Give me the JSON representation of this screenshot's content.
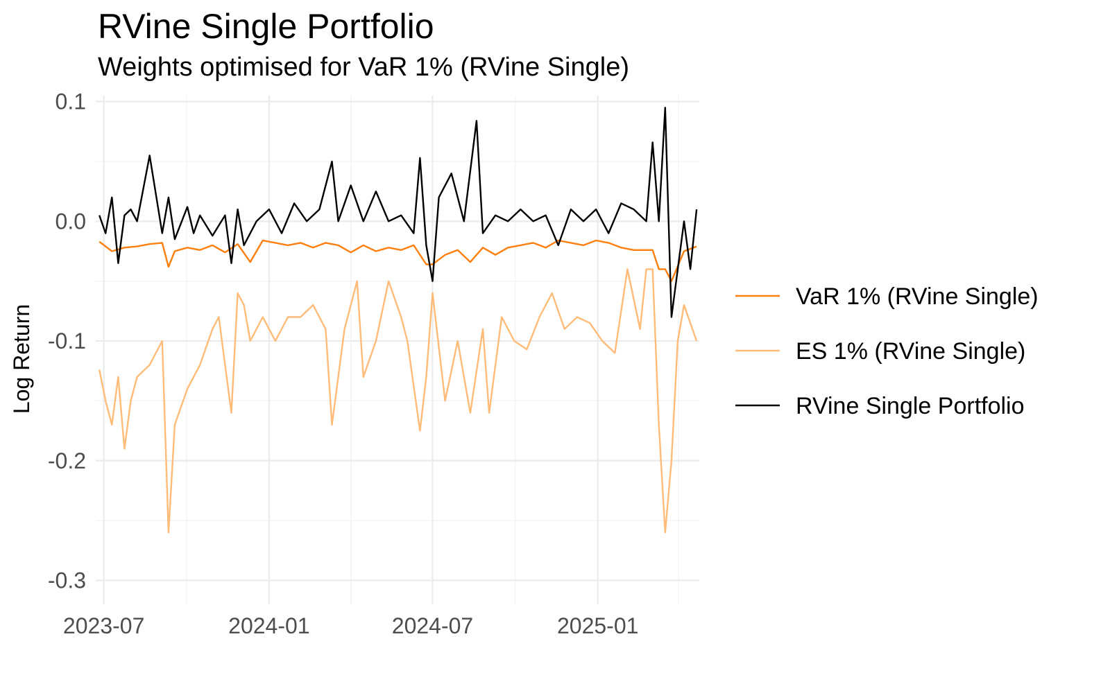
{
  "chart_data": {
    "type": "line",
    "title": "RVine Single Portfolio",
    "subtitle": "Weights optimised for VaR 1% (RVine Single)",
    "xlabel": "",
    "ylabel": "Log Return",
    "xlim": [
      "2023-06-22",
      "2025-04-24"
    ],
    "ylim": [
      -0.32,
      0.105
    ],
    "grid": true,
    "legend_position": "right",
    "x_ticks": [
      "2023-07",
      "2024-01",
      "2024-07",
      "2025-01"
    ],
    "y_ticks": [
      0.1,
      0.0,
      -0.1,
      -0.2,
      -0.3
    ],
    "y_tick_labels": [
      "0.1",
      "0.0",
      "-0.1",
      "-0.2",
      "-0.3"
    ],
    "series": [
      {
        "name": "VaR 1% (RVine Single)",
        "color": "#ff7f0e",
        "x": [
          "2023-06-26",
          "2023-07-10",
          "2023-07-24",
          "2023-08-07",
          "2023-08-21",
          "2023-09-04",
          "2023-09-11",
          "2023-09-18",
          "2023-10-02",
          "2023-10-16",
          "2023-10-30",
          "2023-11-13",
          "2023-11-27",
          "2023-12-11",
          "2023-12-25",
          "2024-01-08",
          "2024-01-22",
          "2024-02-05",
          "2024-02-19",
          "2024-03-04",
          "2024-03-18",
          "2024-04-01",
          "2024-04-15",
          "2024-04-29",
          "2024-05-13",
          "2024-05-27",
          "2024-06-10",
          "2024-06-24",
          "2024-07-01",
          "2024-07-15",
          "2024-07-29",
          "2024-08-12",
          "2024-08-26",
          "2024-09-09",
          "2024-09-23",
          "2024-10-07",
          "2024-10-21",
          "2024-11-04",
          "2024-11-18",
          "2024-12-02",
          "2024-12-16",
          "2024-12-30",
          "2025-01-13",
          "2025-01-27",
          "2025-02-10",
          "2025-02-24",
          "2025-03-03",
          "2025-03-10",
          "2025-03-17",
          "2025-03-24",
          "2025-04-07",
          "2025-04-21"
        ],
        "values": [
          -0.017,
          -0.025,
          -0.022,
          -0.021,
          -0.019,
          -0.018,
          -0.038,
          -0.025,
          -0.022,
          -0.024,
          -0.02,
          -0.026,
          -0.019,
          -0.034,
          -0.016,
          -0.018,
          -0.02,
          -0.018,
          -0.022,
          -0.018,
          -0.02,
          -0.026,
          -0.02,
          -0.025,
          -0.022,
          -0.024,
          -0.02,
          -0.036,
          -0.036,
          -0.028,
          -0.024,
          -0.034,
          -0.022,
          -0.028,
          -0.022,
          -0.02,
          -0.018,
          -0.022,
          -0.016,
          -0.018,
          -0.02,
          -0.016,
          -0.018,
          -0.022,
          -0.024,
          -0.024,
          -0.024,
          -0.04,
          -0.04,
          -0.05,
          -0.025,
          -0.021
        ]
      },
      {
        "name": "ES 1% (RVine Single)",
        "color": "#ffbb78",
        "x": [
          "2023-06-26",
          "2023-07-03",
          "2023-07-10",
          "2023-07-17",
          "2023-07-24",
          "2023-07-31",
          "2023-08-07",
          "2023-08-21",
          "2023-09-04",
          "2023-09-11",
          "2023-09-18",
          "2023-10-02",
          "2023-10-16",
          "2023-10-30",
          "2023-11-06",
          "2023-11-20",
          "2023-11-27",
          "2023-12-04",
          "2023-12-11",
          "2023-12-25",
          "2024-01-08",
          "2024-01-22",
          "2024-02-05",
          "2024-02-19",
          "2024-03-04",
          "2024-03-11",
          "2024-03-25",
          "2024-04-08",
          "2024-04-15",
          "2024-04-29",
          "2024-05-13",
          "2024-05-27",
          "2024-06-03",
          "2024-06-17",
          "2024-06-24",
          "2024-07-01",
          "2024-07-15",
          "2024-07-29",
          "2024-08-12",
          "2024-08-26",
          "2024-09-02",
          "2024-09-16",
          "2024-09-30",
          "2024-10-14",
          "2024-10-28",
          "2024-11-11",
          "2024-11-25",
          "2024-12-09",
          "2024-12-23",
          "2025-01-06",
          "2025-01-20",
          "2025-02-03",
          "2025-02-17",
          "2025-02-24",
          "2025-03-03",
          "2025-03-10",
          "2025-03-17",
          "2025-03-24",
          "2025-03-31",
          "2025-04-07",
          "2025-04-21"
        ],
        "values": [
          -0.124,
          -0.15,
          -0.17,
          -0.13,
          -0.19,
          -0.15,
          -0.13,
          -0.12,
          -0.1,
          -0.26,
          -0.17,
          -0.14,
          -0.12,
          -0.09,
          -0.08,
          -0.16,
          -0.06,
          -0.07,
          -0.1,
          -0.08,
          -0.1,
          -0.08,
          -0.08,
          -0.07,
          -0.09,
          -0.17,
          -0.09,
          -0.05,
          -0.13,
          -0.1,
          -0.05,
          -0.08,
          -0.1,
          -0.175,
          -0.13,
          -0.06,
          -0.15,
          -0.1,
          -0.16,
          -0.09,
          -0.16,
          -0.08,
          -0.1,
          -0.107,
          -0.08,
          -0.06,
          -0.09,
          -0.08,
          -0.085,
          -0.1,
          -0.11,
          -0.04,
          -0.09,
          -0.04,
          -0.04,
          -0.17,
          -0.26,
          -0.2,
          -0.1,
          -0.07,
          -0.1
        ]
      },
      {
        "name": "RVine Single Portfolio",
        "color": "#000000",
        "x": [
          "2023-06-26",
          "2023-07-03",
          "2023-07-10",
          "2023-07-17",
          "2023-07-24",
          "2023-07-31",
          "2023-08-07",
          "2023-08-21",
          "2023-09-04",
          "2023-09-11",
          "2023-09-18",
          "2023-10-02",
          "2023-10-09",
          "2023-10-16",
          "2023-10-30",
          "2023-11-13",
          "2023-11-20",
          "2023-11-27",
          "2023-12-04",
          "2023-12-18",
          "2024-01-01",
          "2024-01-15",
          "2024-01-29",
          "2024-02-12",
          "2024-02-26",
          "2024-03-11",
          "2024-03-18",
          "2024-04-01",
          "2024-04-15",
          "2024-04-29",
          "2024-05-13",
          "2024-05-27",
          "2024-06-10",
          "2024-06-17",
          "2024-06-24",
          "2024-07-01",
          "2024-07-08",
          "2024-07-22",
          "2024-08-05",
          "2024-08-19",
          "2024-08-26",
          "2024-09-09",
          "2024-09-23",
          "2024-10-07",
          "2024-10-21",
          "2024-11-04",
          "2024-11-18",
          "2024-12-02",
          "2024-12-16",
          "2024-12-30",
          "2025-01-13",
          "2025-01-27",
          "2025-02-10",
          "2025-02-24",
          "2025-03-03",
          "2025-03-10",
          "2025-03-17",
          "2025-03-24",
          "2025-04-07",
          "2025-04-14",
          "2025-04-21"
        ],
        "values": [
          0.005,
          -0.01,
          0.02,
          -0.035,
          0.005,
          0.01,
          0.0,
          0.055,
          -0.01,
          0.02,
          -0.015,
          0.012,
          -0.01,
          0.005,
          -0.012,
          0.005,
          -0.035,
          0.01,
          -0.02,
          0.0,
          0.01,
          -0.01,
          0.015,
          0.0,
          0.01,
          0.05,
          0.0,
          0.03,
          0.0,
          0.025,
          0.0,
          0.005,
          -0.01,
          0.053,
          -0.02,
          -0.05,
          0.02,
          0.04,
          0.0,
          0.084,
          -0.01,
          0.005,
          0.0,
          0.01,
          0.0,
          0.005,
          -0.02,
          0.01,
          0.0,
          0.01,
          -0.01,
          0.015,
          0.01,
          0.0,
          0.066,
          0.0,
          0.095,
          -0.08,
          0.0,
          -0.04,
          0.01
        ]
      }
    ]
  }
}
